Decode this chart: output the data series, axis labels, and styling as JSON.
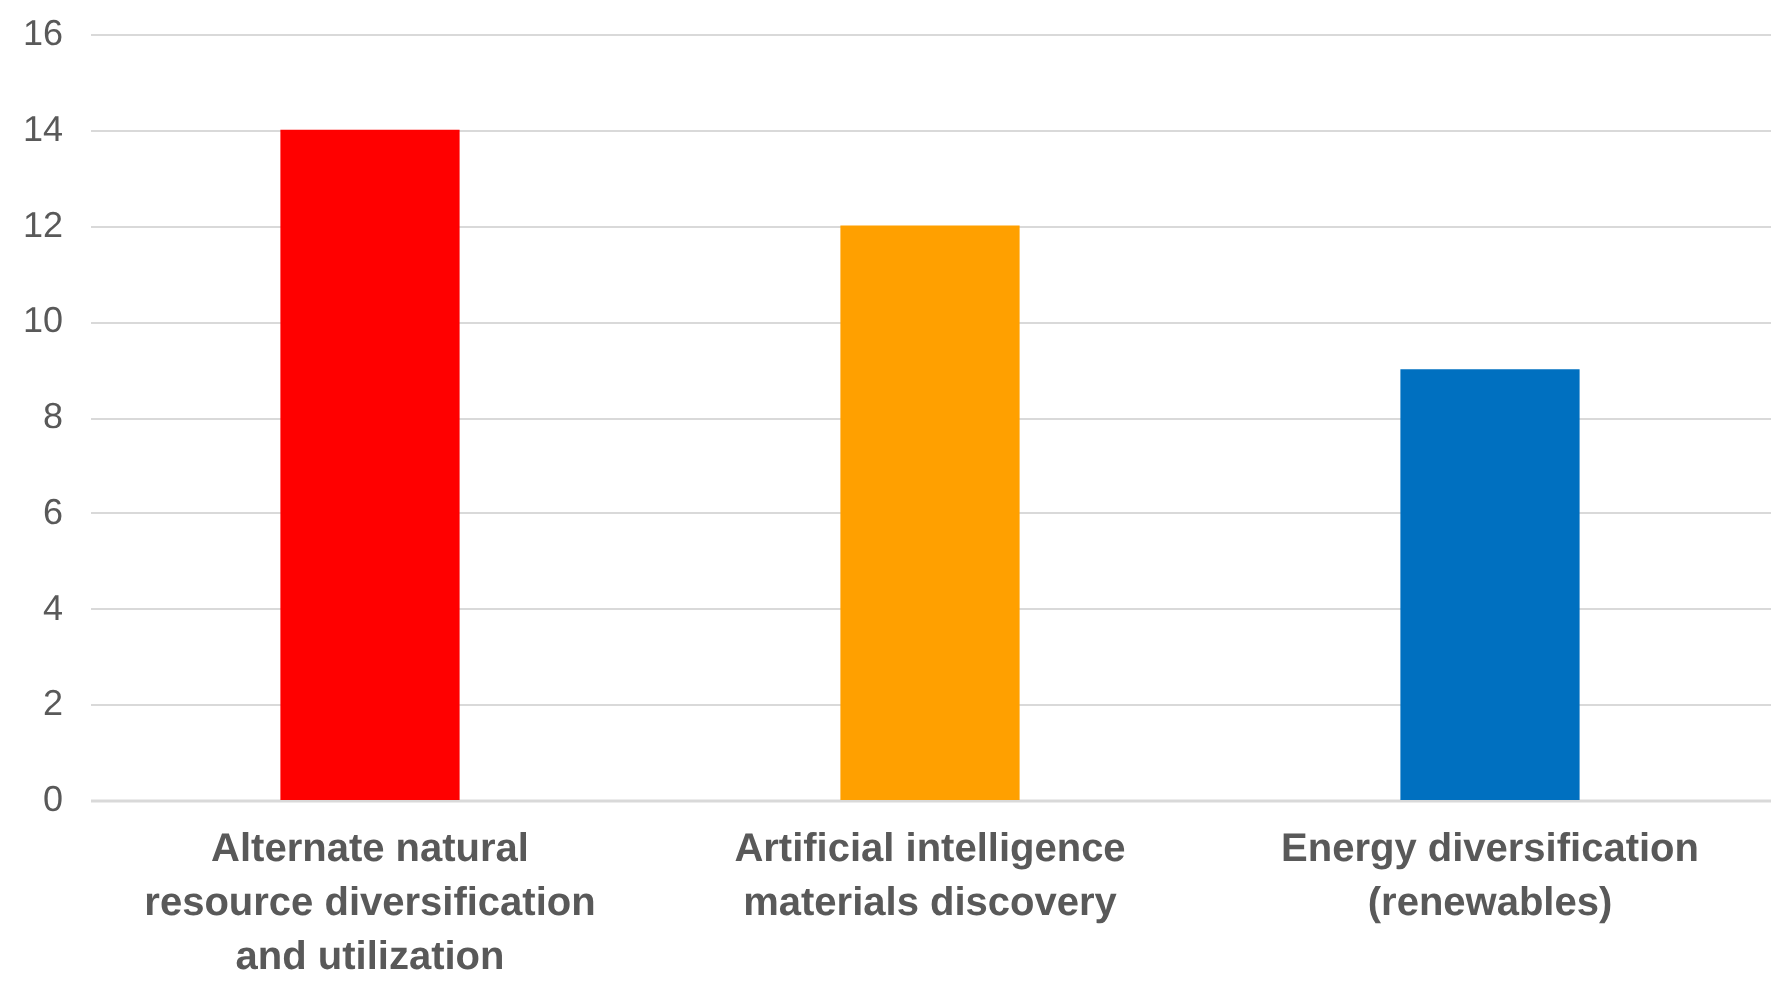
{
  "chart_data": {
    "type": "bar",
    "categories": [
      "Alternate natural resource diversification and utilization",
      "Artificial intelligence materials discovery",
      "Energy diversification (renewables)"
    ],
    "values": [
      14,
      12,
      9
    ],
    "colors": [
      "#ff0000",
      "#ffa000",
      "#0070c0"
    ],
    "ylim": [
      0,
      16
    ],
    "yticks": [
      0,
      2,
      4,
      6,
      8,
      10,
      12,
      14,
      16
    ],
    "grid": "y"
  }
}
